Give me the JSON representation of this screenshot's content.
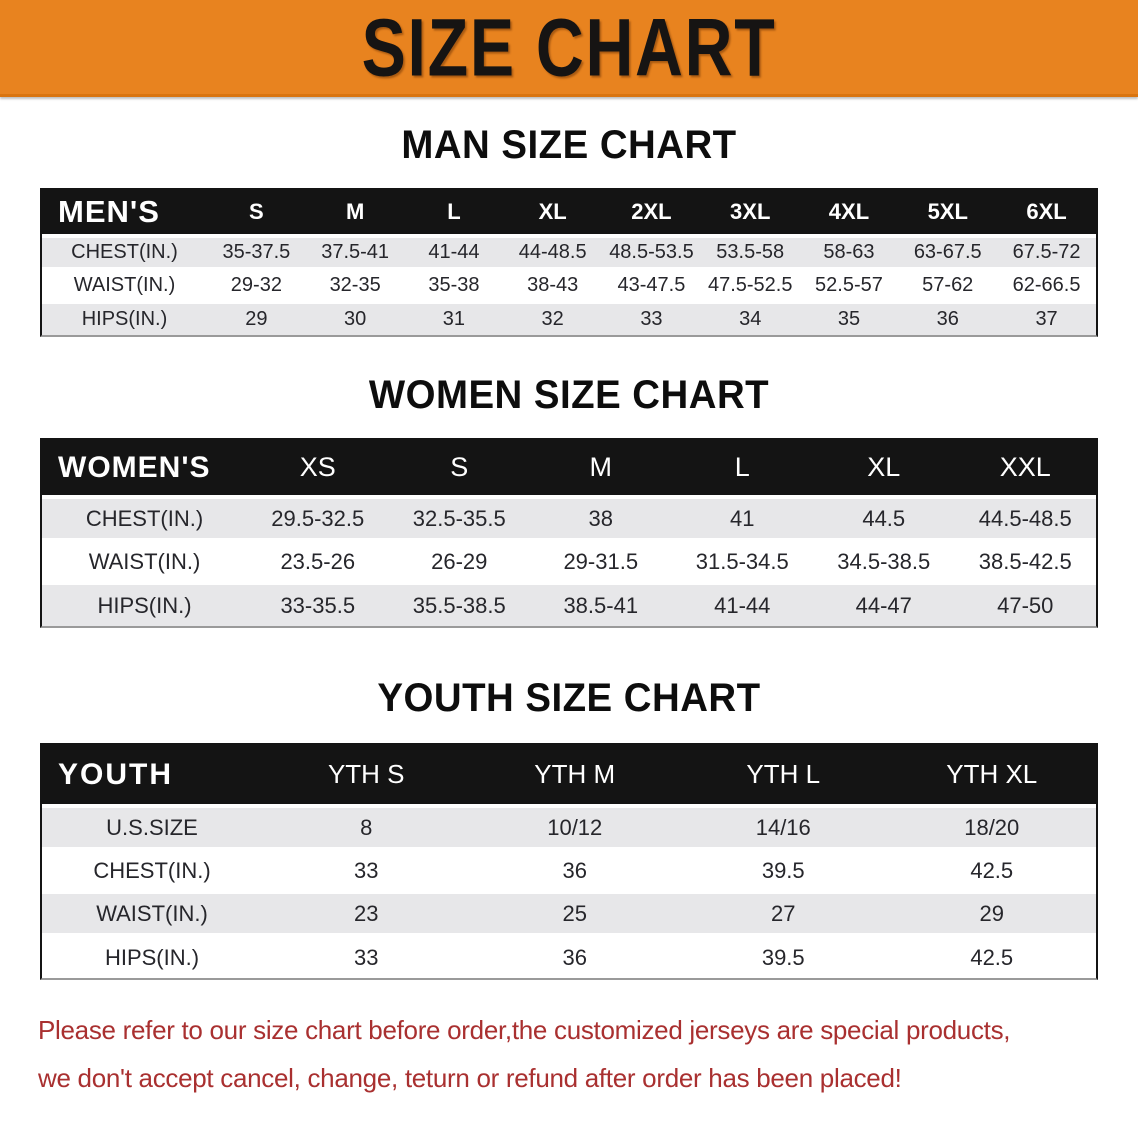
{
  "banner": {
    "title": "SIZE CHART"
  },
  "sections": [
    {
      "id": "men",
      "heading": "MAN SIZE CHART",
      "table": {
        "header_label": "MEN'S",
        "columns": [
          "S",
          "M",
          "L",
          "XL",
          "2XL",
          "3XL",
          "4XL",
          "5XL",
          "6XL"
        ],
        "rows": [
          {
            "label": "CHEST(IN.)",
            "values": [
              "35-37.5",
              "37.5-41",
              "41-44",
              "44-48.5",
              "48.5-53.5",
              "53.5-58",
              "58-63",
              "63-67.5",
              "67.5-72"
            ]
          },
          {
            "label": "WAIST(IN.)",
            "values": [
              "29-32",
              "32-35",
              "35-38",
              "38-43",
              "43-47.5",
              "47.5-52.5",
              "52.5-57",
              "57-62",
              "62-66.5"
            ]
          },
          {
            "label": "HIPS(IN.)",
            "values": [
              "29",
              "30",
              "31",
              "32",
              "33",
              "34",
              "35",
              "36",
              "37"
            ]
          }
        ]
      }
    },
    {
      "id": "women",
      "heading": "WOMEN SIZE CHART",
      "table": {
        "header_label": "WOMEN'S",
        "columns": [
          "XS",
          "S",
          "M",
          "L",
          "XL",
          "XXL"
        ],
        "rows": [
          {
            "label": "CHEST(IN.)",
            "values": [
              "29.5-32.5",
              "32.5-35.5",
              "38",
              "41",
              "44.5",
              "44.5-48.5"
            ]
          },
          {
            "label": "WAIST(IN.)",
            "values": [
              "23.5-26",
              "26-29",
              "29-31.5",
              "31.5-34.5",
              "34.5-38.5",
              "38.5-42.5"
            ]
          },
          {
            "label": "HIPS(IN.)",
            "values": [
              "33-35.5",
              "35.5-38.5",
              "38.5-41",
              "41-44",
              "44-47",
              "47-50"
            ]
          }
        ]
      }
    },
    {
      "id": "youth",
      "heading": "YOUTH SIZE CHART",
      "table": {
        "header_label": "YOUTH",
        "columns": [
          "YTH S",
          "YTH M",
          "YTH L",
          "YTH XL"
        ],
        "rows": [
          {
            "label": "U.S.SIZE",
            "values": [
              "8",
              "10/12",
              "14/16",
              "18/20"
            ]
          },
          {
            "label": "CHEST(IN.)",
            "values": [
              "33",
              "36",
              "39.5",
              "42.5"
            ]
          },
          {
            "label": "WAIST(IN.)",
            "values": [
              "23",
              "25",
              "27",
              "29"
            ]
          },
          {
            "label": "HIPS(IN.)",
            "values": [
              "33",
              "36",
              "39.5",
              "42.5"
            ]
          }
        ]
      }
    }
  ],
  "footer": {
    "line1": "Please refer to our size chart before order,the customized jerseys are special products,",
    "line2": "we don't accept cancel, change, teturn or refund after order has been placed!"
  },
  "colors": {
    "banner_bg": "#E8831F",
    "banner_fg": "#161413",
    "table_header_bg": "#141414",
    "table_header_fg": "#ffffff",
    "row_stripe": "#e7e7e9",
    "cell_text": "#26262b",
    "notice_text": "#A93030"
  }
}
